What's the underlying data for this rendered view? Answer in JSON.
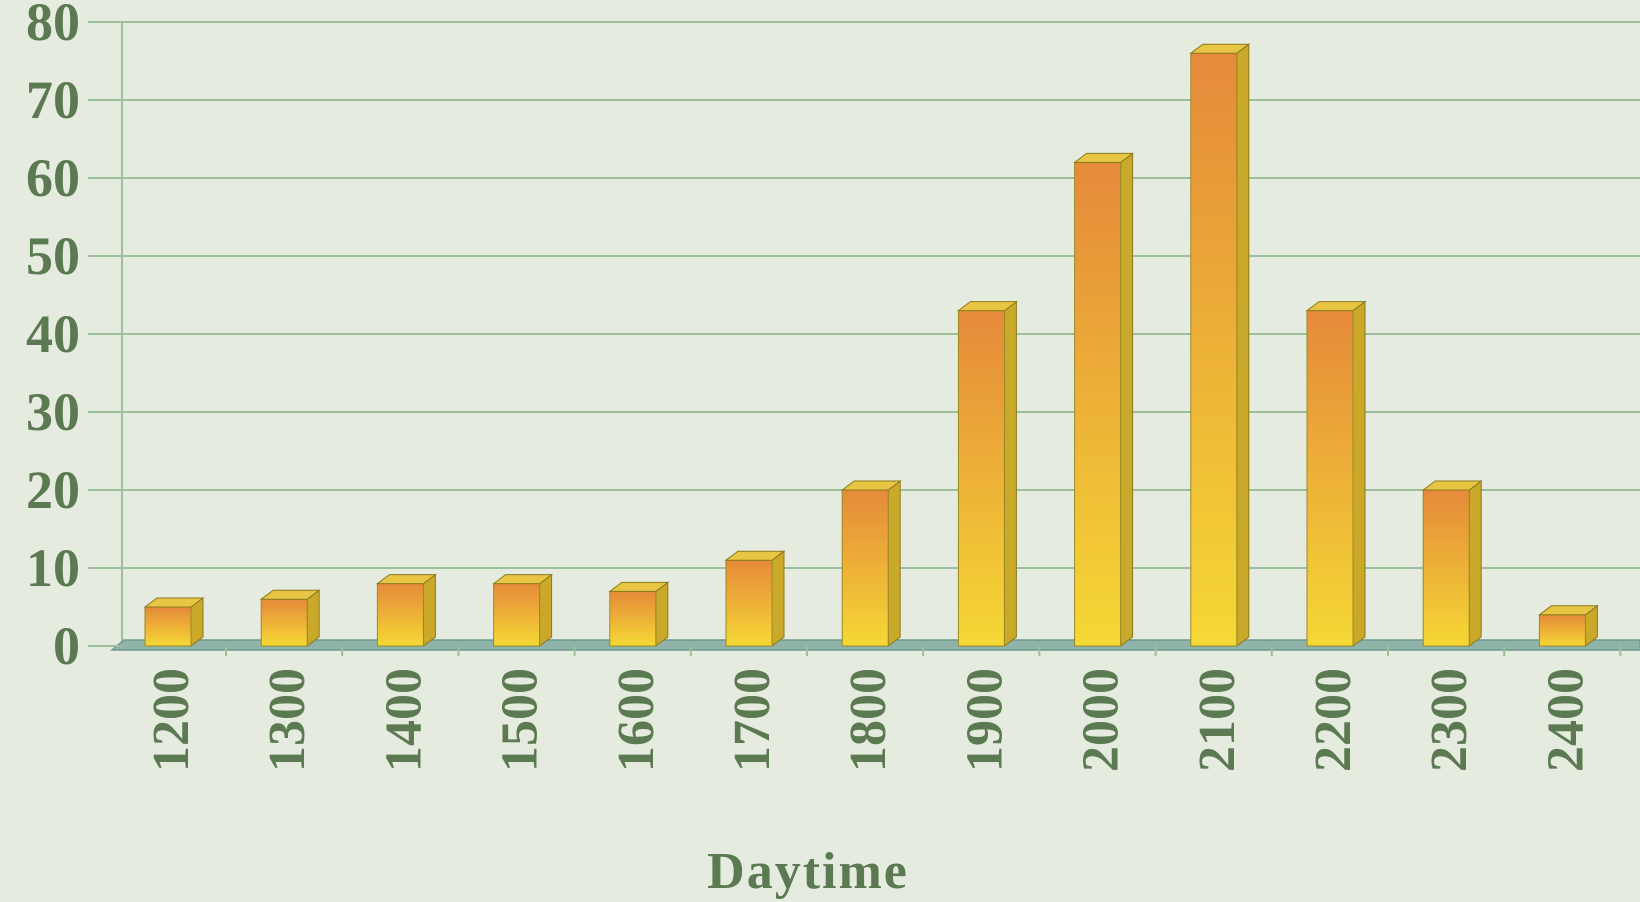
{
  "chart_data": {
    "type": "bar",
    "title": "",
    "xlabel": "Daytime",
    "ylabel": "",
    "ylim": [
      0,
      80
    ],
    "yticks": [
      "0",
      "10",
      "20",
      "30",
      "40",
      "50",
      "60",
      "70",
      "80"
    ],
    "categories": [
      "1200",
      "1300",
      "1400",
      "1500",
      "1600",
      "1700",
      "1800",
      "1900",
      "2000",
      "2100",
      "2200",
      "2300",
      "2400"
    ],
    "values": [
      5,
      6,
      8,
      8,
      7,
      11,
      20,
      43,
      62,
      76,
      43,
      20,
      4
    ],
    "grid": true,
    "legend": "none",
    "style": "3d-bars"
  },
  "colors": {
    "background": "#e6ebe0",
    "grid": "#9cbf9c",
    "text": "#5c7a52",
    "bar_top": "#e58a3a",
    "bar_bottom": "#f5d835",
    "bar_side": "#c9a82a",
    "bar_cap": "#e8c644",
    "floor": "#8fb3a9"
  }
}
